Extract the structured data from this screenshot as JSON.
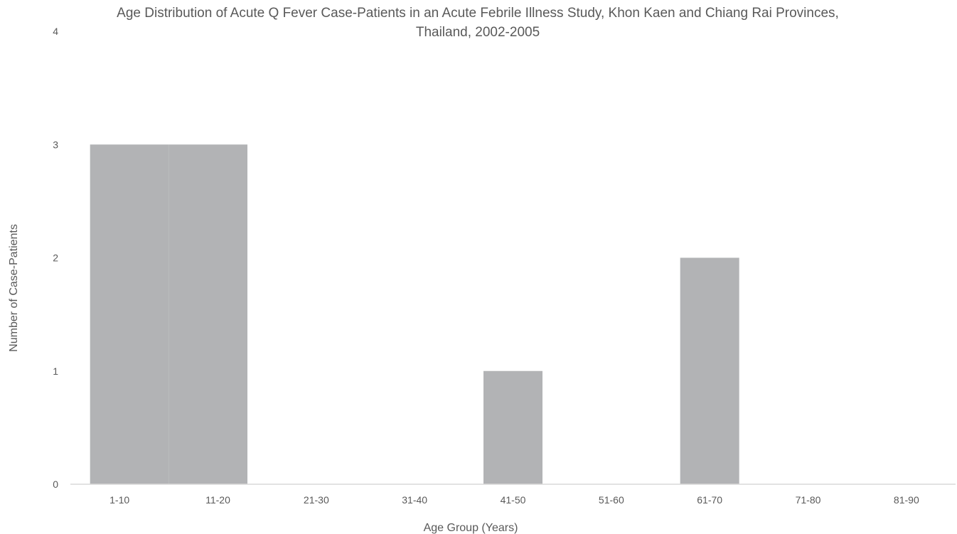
{
  "chart_data": {
    "type": "bar",
    "title_lines": [
      "Age Distribution of Acute Q Fever Case-Patients in an Acute Febrile Illness Study, Khon Kaen and Chiang Rai Provinces,",
      "Thailand, 2002-2005"
    ],
    "xlabel": "Age Group (Years)",
    "ylabel": "Number of Case-Patients",
    "categories": [
      "1-10",
      "11-20",
      "21-30",
      "31-40",
      "41-50",
      "51-60",
      "61-70",
      "71-80",
      "81-90"
    ],
    "values": [
      3,
      3,
      0,
      0,
      1,
      0,
      2,
      0,
      0
    ],
    "ylim": [
      0,
      4
    ],
    "yticks": [
      "0",
      "1",
      "2",
      "3",
      "4"
    ],
    "grid": false,
    "bar_color": "#b2b3b5",
    "axis_color": "#d9d9d9",
    "text_color": "#595959"
  }
}
